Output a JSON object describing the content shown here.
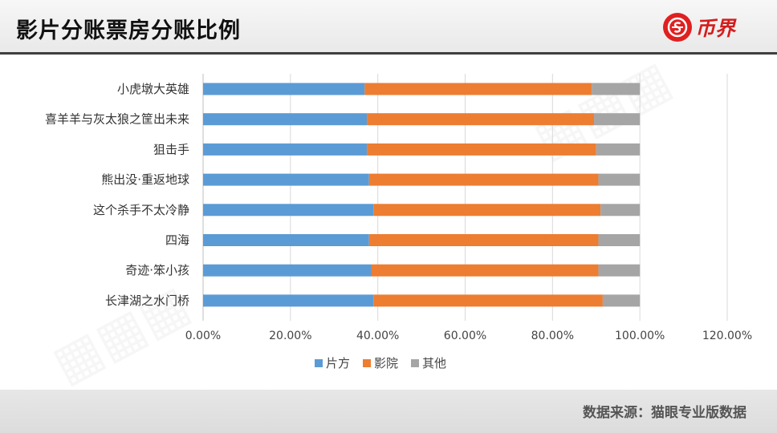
{
  "header": {
    "title": "影片分账票房分账比例",
    "logo_text": "币界"
  },
  "footer": {
    "source": "数据来源：猫眼专业版数据"
  },
  "colors": {
    "片方": "#5b9bd5",
    "影院": "#ed7d31",
    "其他": "#a5a5a5"
  },
  "chart_data": {
    "type": "bar",
    "orientation": "horizontal",
    "stacked": true,
    "categories": [
      "小虎墩大英雄",
      "喜羊羊与灰太狼之筐出未来",
      "狙击手",
      "熊出没·重返地球",
      "这个杀手不太冷静",
      "四海",
      "奇迹·笨小孩",
      "长津湖之水门桥"
    ],
    "series": [
      {
        "name": "片方",
        "values": [
          37.0,
          37.5,
          37.5,
          38.0,
          39.0,
          38.0,
          38.5,
          39.0
        ]
      },
      {
        "name": "影院",
        "values": [
          52.0,
          52.0,
          52.5,
          52.5,
          52.0,
          52.5,
          52.0,
          52.5
        ]
      },
      {
        "name": "其他",
        "values": [
          11.0,
          10.5,
          10.0,
          9.5,
          9.0,
          9.5,
          9.5,
          8.5
        ]
      }
    ],
    "xticks": [
      "0.00%",
      "20.00%",
      "40.00%",
      "60.00%",
      "80.00%",
      "100.00%",
      "120.00%"
    ],
    "xlim": [
      0,
      120
    ],
    "grid": true,
    "legend_position": "bottom"
  }
}
